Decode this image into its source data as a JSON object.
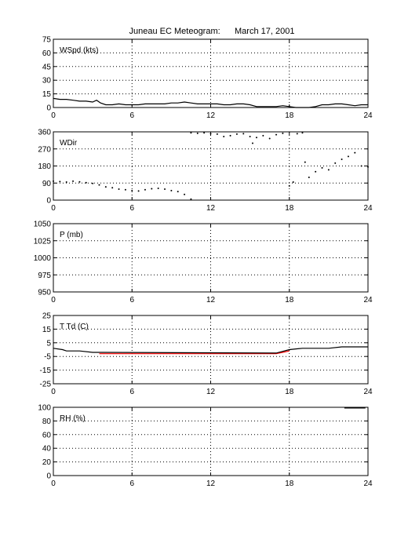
{
  "title": "Juneau EC Meteogram:      March 17, 2001",
  "colors": {
    "temperature": "#ff0000",
    "dewpoint": "#000000",
    "trace": "#000000",
    "grid": "#000000"
  },
  "chart_data": [
    {
      "type": "line",
      "label": "WSpd (kts)",
      "x_ticks": [
        "0",
        "6",
        "12",
        "18",
        "24"
      ],
      "y_ticks": [
        "0",
        "15",
        "30",
        "45",
        "60",
        "75"
      ],
      "xlim": [
        0,
        24
      ],
      "ylim": [
        0,
        75
      ],
      "grid": true,
      "series": [
        {
          "points": [
            [
              0,
              10
            ],
            [
              0.5,
              9
            ],
            [
              1,
              9
            ],
            [
              1.5,
              8
            ],
            [
              2,
              7
            ],
            [
              2.5,
              7
            ],
            [
              3,
              6
            ],
            [
              3.3,
              8
            ],
            [
              3.6,
              5
            ],
            [
              4,
              3
            ],
            [
              4.5,
              3
            ],
            [
              5,
              4
            ],
            [
              5.5,
              3
            ],
            [
              6,
              3
            ],
            [
              6.5,
              3
            ],
            [
              7,
              4
            ],
            [
              7.5,
              4
            ],
            [
              8,
              4
            ],
            [
              8.5,
              4
            ],
            [
              9,
              5
            ],
            [
              9.5,
              5
            ],
            [
              10,
              6
            ],
            [
              10.5,
              5
            ],
            [
              11,
              4
            ],
            [
              11.5,
              4
            ],
            [
              12,
              4
            ],
            [
              12.5,
              4
            ],
            [
              13,
              3
            ],
            [
              13.5,
              3
            ],
            [
              14,
              4
            ],
            [
              14.5,
              4
            ],
            [
              15,
              3
            ],
            [
              15.5,
              1
            ],
            [
              16,
              1
            ],
            [
              16.5,
              1
            ],
            [
              17,
              1
            ],
            [
              17.5,
              2
            ],
            [
              18,
              1
            ],
            [
              18.5,
              0
            ],
            [
              19,
              0
            ],
            [
              19.5,
              0
            ],
            [
              20,
              1
            ],
            [
              20.5,
              3
            ],
            [
              21,
              3
            ],
            [
              21.5,
              4
            ],
            [
              22,
              4
            ],
            [
              22.5,
              3
            ],
            [
              23,
              2
            ],
            [
              23.5,
              3
            ],
            [
              24,
              3
            ]
          ]
        }
      ]
    },
    {
      "type": "scatter",
      "label": "WDir",
      "x_ticks": [
        "0",
        "6",
        "12",
        "18",
        "24"
      ],
      "y_ticks": [
        "0",
        "90",
        "180",
        "270",
        "360"
      ],
      "xlim": [
        0,
        24
      ],
      "ylim": [
        0,
        360
      ],
      "grid": true,
      "series": [
        {
          "points": [
            [
              0,
              100
            ],
            [
              0.5,
              98
            ],
            [
              1,
              95
            ],
            [
              1.5,
              100
            ],
            [
              2,
              96
            ],
            [
              2.5,
              92
            ],
            [
              3,
              88
            ],
            [
              3.5,
              80
            ],
            [
              4,
              70
            ],
            [
              4.5,
              65
            ],
            [
              5,
              58
            ],
            [
              5.5,
              55
            ],
            [
              6,
              50
            ],
            [
              6.5,
              48
            ],
            [
              7,
              55
            ],
            [
              7.5,
              60
            ],
            [
              8,
              62
            ],
            [
              8.5,
              58
            ],
            [
              9,
              50
            ],
            [
              9.5,
              45
            ],
            [
              10,
              30
            ],
            [
              10.5,
              5
            ],
            [
              10.5,
              355
            ],
            [
              11,
              352
            ],
            [
              11.5,
              355
            ],
            [
              12,
              350
            ],
            [
              12.5,
              348
            ],
            [
              13,
              335
            ],
            [
              13.5,
              340
            ],
            [
              14,
              348
            ],
            [
              14.5,
              350
            ],
            [
              15,
              335
            ],
            [
              15.2,
              300
            ],
            [
              15.5,
              330
            ],
            [
              16,
              340
            ],
            [
              16.5,
              325
            ],
            [
              17,
              345
            ],
            [
              17.5,
              352
            ],
            [
              18,
              75
            ],
            [
              18.3,
              95
            ],
            [
              18.6,
              350
            ],
            [
              19,
              355
            ],
            [
              19.2,
              200
            ],
            [
              19.5,
              120
            ],
            [
              20,
              150
            ],
            [
              20.5,
              170
            ],
            [
              21,
              160
            ],
            [
              21.5,
              195
            ],
            [
              22,
              215
            ],
            [
              22.5,
              230
            ],
            [
              23,
              250
            ],
            [
              23.5,
              180
            ],
            [
              24,
              175
            ]
          ]
        }
      ]
    },
    {
      "type": "line",
      "label": "P (mb)",
      "x_ticks": [
        "0",
        "6",
        "12",
        "18",
        "24"
      ],
      "y_ticks": [
        "950",
        "975",
        "1000",
        "1025",
        "1050"
      ],
      "xlim": [
        0,
        24
      ],
      "ylim": [
        950,
        1050
      ],
      "grid": true,
      "series": []
    },
    {
      "type": "line",
      "label": "T Td (C)",
      "x_ticks": [
        "0",
        "6",
        "12",
        "18",
        "24"
      ],
      "y_ticks": [
        "-25",
        "-15",
        "-5",
        "5",
        "15",
        "25"
      ],
      "xlim": [
        0,
        24
      ],
      "ylim": [
        -25,
        25
      ],
      "grid": true,
      "series": [
        {
          "points": [
            [
              3.5,
              -3
            ],
            [
              17,
              -3
            ],
            [
              17.5,
              -2
            ],
            [
              18,
              -1
            ]
          ]
        },
        {
          "points": [
            [
              0,
              1
            ],
            [
              0.7,
              0
            ],
            [
              1,
              -1
            ],
            [
              2,
              -1
            ],
            [
              3,
              -2
            ],
            [
              3.5,
              -2
            ],
            [
              17,
              -2.5
            ],
            [
              18,
              0
            ],
            [
              19,
              1
            ],
            [
              20,
              1
            ],
            [
              21,
              1
            ],
            [
              22,
              2
            ],
            [
              23,
              2
            ],
            [
              24,
              2
            ]
          ]
        }
      ]
    },
    {
      "type": "line",
      "label": "RH (%)",
      "x_ticks": [
        "0",
        "6",
        "12",
        "18",
        "24"
      ],
      "y_ticks": [
        "0",
        "20",
        "40",
        "60",
        "80",
        "100"
      ],
      "xlim": [
        0,
        24
      ],
      "ylim": [
        0,
        100
      ],
      "grid": true,
      "series": [
        {
          "points": [
            [
              22.2,
              99
            ],
            [
              22.6,
              99
            ],
            [
              23,
              99
            ],
            [
              23.5,
              99
            ],
            [
              23.8,
              99
            ]
          ]
        }
      ]
    }
  ]
}
